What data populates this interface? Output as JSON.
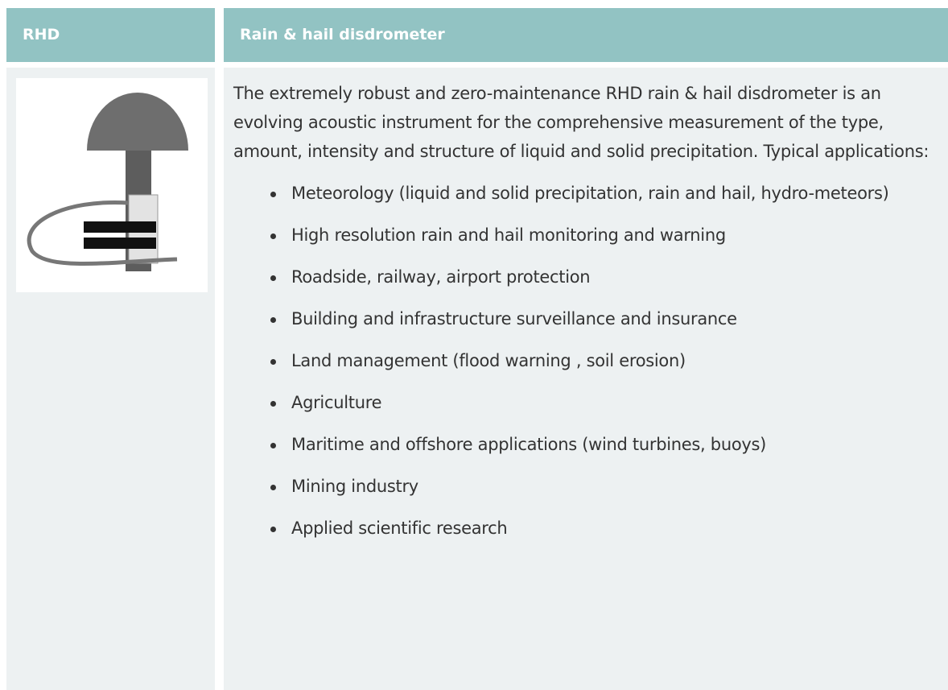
{
  "table": {
    "header": [
      "RHD",
      "Rain & hail disdrometer"
    ],
    "description": "The extremely robust and zero-maintenance RHD rain & hail disdrometer is an evolving acoustic instrument for the comprehensive measurement of the type, amount, intensity and structure of liquid and solid precipitation. Typical applications:",
    "applications": [
      "Meteorology (liquid and solid precipitation, rain and hail, hydro-meteors)",
      "High resolution rain and hail monitoring and warning",
      "Roadside, railway, airport protection",
      "Building and infrastructure surveillance and insurance",
      "Land management (flood warning , soil erosion)",
      "Agriculture",
      "Maritime and offshore applications (wind turbines, buoys)",
      "Mining industry",
      "Applied scientific research"
    ]
  }
}
